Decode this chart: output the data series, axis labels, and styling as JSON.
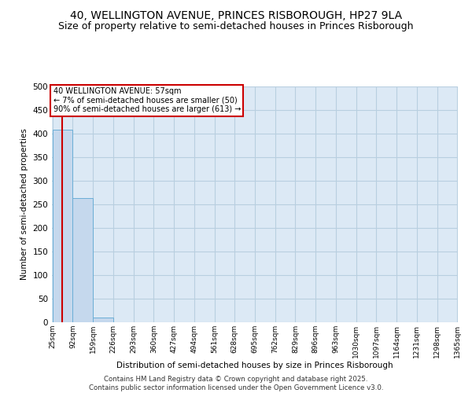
{
  "title": "40, WELLINGTON AVENUE, PRINCES RISBOROUGH, HP27 9LA",
  "subtitle": "Size of property relative to semi-detached houses in Princes Risborough",
  "xlabel": "Distribution of semi-detached houses by size in Princes Risborough",
  "ylabel": "Number of semi-detached properties",
  "bar_values": [
    408,
    263,
    10,
    0,
    0,
    0,
    0,
    0,
    0,
    0,
    0,
    0,
    0,
    0,
    0,
    0,
    0,
    0,
    0,
    0
  ],
  "bin_edges": [
    25,
    92,
    159,
    226,
    293,
    360,
    427,
    494,
    561,
    628,
    695,
    762,
    829,
    896,
    963,
    1030,
    1097,
    1164,
    1231,
    1298,
    1365
  ],
  "bar_color": "#c5d8ed",
  "bar_edgecolor": "#6aaed6",
  "property_size": 57,
  "red_line_color": "#cc0000",
  "annotation_text": "40 WELLINGTON AVENUE: 57sqm\n← 7% of semi-detached houses are smaller (50)\n90% of semi-detached houses are larger (613) →",
  "annotation_box_color": "#cc0000",
  "annotation_bg": "#ffffff",
  "ylim": [
    0,
    500
  ],
  "yticks": [
    0,
    50,
    100,
    150,
    200,
    250,
    300,
    350,
    400,
    450,
    500
  ],
  "footer": "Contains HM Land Registry data © Crown copyright and database right 2025.\nContains public sector information licensed under the Open Government Licence v3.0.",
  "title_fontsize": 10,
  "subtitle_fontsize": 9,
  "bg_color": "#ffffff",
  "plot_bg_color": "#dce9f5",
  "grid_color": "#b8cfe0"
}
